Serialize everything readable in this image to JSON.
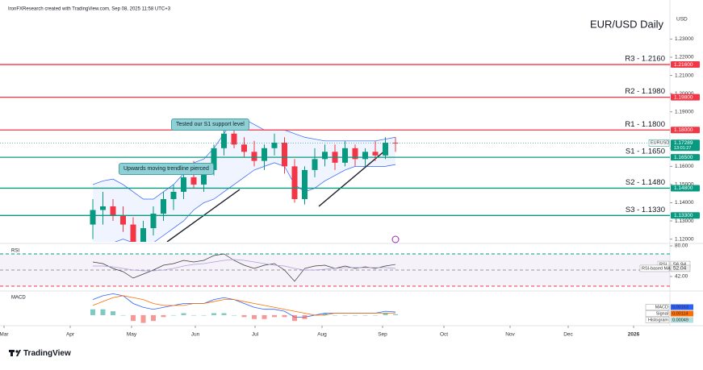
{
  "header": {
    "credit": "IronFXResearch created with TradingView.com, Sep 08, 2025 11:58 UTC+3",
    "currency": "USD"
  },
  "chart_data": [
    {
      "type": "candlestick",
      "title": "EUR/USD Daily",
      "xlim": [
        -9.2,
        57.2
      ],
      "ylim": [
        1.1185,
        1.2435
      ],
      "yticks": [
        {
          "value": 1.23,
          "label": "1.23000"
        },
        {
          "value": 1.22,
          "label": "1.22000"
        },
        {
          "value": 1.21,
          "label": "1.21000"
        },
        {
          "value": 1.2,
          "label": "1.20000"
        },
        {
          "value": 1.19,
          "label": "1.19000"
        },
        {
          "value": 1.17,
          "label": "1.17000"
        },
        {
          "value": 1.16,
          "label": "1.16000"
        },
        {
          "value": 1.15,
          "label": "1.15000"
        },
        {
          "value": 1.14,
          "label": "1.14000"
        },
        {
          "value": 1.13,
          "label": "1.13000"
        },
        {
          "value": 1.12,
          "label": "1.12000"
        }
      ],
      "series": [
        {
          "name": "EURUSD",
          "up_color": "#089981",
          "down_color": "#f23645",
          "open": [
            1.128,
            1.136,
            1.138,
            1.133,
            1.128,
            1.118,
            1.126,
            1.134,
            1.142,
            1.146,
            1.154,
            1.15,
            1.158,
            1.17,
            1.178,
            1.172,
            1.168,
            1.163,
            1.17,
            1.173,
            1.16,
            1.142,
            1.158,
            1.164,
            1.168,
            1.162,
            1.17,
            1.164,
            1.168,
            1.166,
            1.173
          ],
          "high": [
            1.142,
            1.146,
            1.142,
            1.138,
            1.132,
            1.13,
            1.138,
            1.146,
            1.15,
            1.158,
            1.163,
            1.16,
            1.172,
            1.18,
            1.183,
            1.176,
            1.174,
            1.172,
            1.178,
            1.176,
            1.164,
            1.16,
            1.17,
            1.172,
            1.172,
            1.174,
            1.172,
            1.17,
            1.174,
            1.176,
            1.176
          ],
          "low": [
            1.12,
            1.128,
            1.13,
            1.124,
            1.112,
            1.114,
            1.122,
            1.13,
            1.136,
            1.142,
            1.148,
            1.146,
            1.155,
            1.166,
            1.17,
            1.165,
            1.16,
            1.158,
            1.166,
            1.156,
            1.14,
            1.139,
            1.154,
            1.16,
            1.158,
            1.16,
            1.16,
            1.16,
            1.163,
            1.164,
            1.168
          ],
          "close": [
            1.136,
            1.138,
            1.133,
            1.128,
            1.118,
            1.126,
            1.134,
            1.142,
            1.146,
            1.154,
            1.15,
            1.158,
            1.17,
            1.178,
            1.172,
            1.168,
            1.163,
            1.17,
            1.173,
            1.16,
            1.142,
            1.158,
            1.164,
            1.168,
            1.162,
            1.17,
            1.164,
            1.168,
            1.166,
            1.173,
            1.17289
          ]
        }
      ],
      "countdown": "13:01:27",
      "bands": {
        "color": "#2962ff",
        "upper": [
          1.15,
          1.152,
          1.153,
          1.15,
          1.146,
          1.142,
          1.142,
          1.146,
          1.15,
          1.156,
          1.162,
          1.164,
          1.17,
          1.178,
          1.186,
          1.186,
          1.183,
          1.18,
          1.18,
          1.18,
          1.178,
          1.176,
          1.175,
          1.174,
          1.174,
          1.174,
          1.174,
          1.174,
          1.174,
          1.175,
          1.176
        ],
        "lower": [
          1.11,
          1.112,
          1.118,
          1.12,
          1.118,
          1.116,
          1.118,
          1.122,
          1.126,
          1.13,
          1.136,
          1.14,
          1.142,
          1.146,
          1.15,
          1.154,
          1.158,
          1.16,
          1.162,
          1.16,
          1.15,
          1.146,
          1.148,
          1.152,
          1.155,
          1.158,
          1.16,
          1.16,
          1.16,
          1.16,
          1.161
        ]
      },
      "levels": [
        {
          "name": "R3 - 1.2160",
          "value": 1.216,
          "label": "1.21600",
          "color": "#f23645"
        },
        {
          "name": "R2 - 1.1980",
          "value": 1.198,
          "label": "1.19800",
          "color": "#f23645"
        },
        {
          "name": "R1 - 1.1800",
          "value": 1.18,
          "label": "1.18000",
          "color": "#f23645"
        },
        {
          "name": "S1 - 1.1650",
          "value": 1.165,
          "label": "1.16500",
          "color": "#089981"
        },
        {
          "name": "S2 - 1.1480",
          "value": 1.148,
          "label": "1.14800",
          "color": "#089981"
        },
        {
          "name": "S3 - 1.1330",
          "value": 1.133,
          "label": "1.13300",
          "color": "#089981"
        }
      ],
      "trendlines": [
        {
          "x": [
            7.36,
            14.56
          ],
          "y": [
            1.1185,
            1.1473
          ]
        },
        {
          "x": [
            22.4,
            29.04
          ],
          "y": [
            1.138,
            1.169
          ]
        }
      ],
      "annotations": [
        "Tested our S1 support level",
        "Upwards moving trendline  pierced"
      ]
    },
    {
      "type": "line",
      "title": "RSI",
      "xlim": [
        -9.2,
        57.2
      ],
      "ylim": [
        25,
        82
      ],
      "yticks": [
        {
          "value": 80,
          "label": "80.00"
        },
        {
          "value": 42,
          "label": "42.00"
        }
      ],
      "levels": [
        70,
        50,
        30
      ],
      "series": [
        {
          "name": "RSI",
          "color": "#3a3a3a",
          "values": [
            60,
            58,
            52,
            48,
            40,
            45,
            50,
            56,
            58,
            62,
            60,
            62,
            68,
            70,
            62,
            56,
            52,
            56,
            58,
            50,
            36,
            52,
            55,
            56,
            52,
            55,
            52,
            54,
            52,
            55,
            56.94
          ]
        },
        {
          "name": "RSI-based MA",
          "color": "#b39ddb",
          "values": [
            55,
            55,
            54,
            52,
            50,
            49,
            49,
            50,
            52,
            55,
            57,
            58,
            60,
            62,
            63,
            62,
            60,
            58,
            56,
            55,
            52,
            50,
            50,
            51,
            52,
            53,
            53,
            53,
            53,
            53,
            52.04
          ]
        }
      ]
    },
    {
      "type": "macd",
      "title": "MACD",
      "xlim": [
        -9.2,
        57.2
      ],
      "ylim": [
        -0.005,
        0.012
      ],
      "xticks": [
        {
          "value": -8.8,
          "label": "Mar"
        },
        {
          "value": -2.24,
          "label": "Apr"
        },
        {
          "value": 3.84,
          "label": "May"
        },
        {
          "value": 10.16,
          "label": "Jun"
        },
        {
          "value": 16.08,
          "label": "Jul"
        },
        {
          "value": 22.72,
          "label": "Aug"
        },
        {
          "value": 28.72,
          "label": "Sep"
        },
        {
          "value": 34.8,
          "label": "Oct"
        },
        {
          "value": 41.36,
          "label": "Nov"
        },
        {
          "value": 47.12,
          "label": "Dec"
        },
        {
          "value": 53.6,
          "label": "2026"
        }
      ],
      "series": [
        {
          "name": "MACD",
          "color": "#2962ff",
          "values": [
            0.008,
            0.01,
            0.011,
            0.01,
            0.006,
            0.004,
            0.003,
            0.004,
            0.005,
            0.006,
            0.006,
            0.006,
            0.008,
            0.009,
            0.008,
            0.006,
            0.004,
            0.003,
            0.003,
            0.002,
            -0.001,
            -0.001,
            0.0,
            0.001,
            0.001,
            0.001,
            0.001,
            0.001,
            0.001,
            0.002,
            0.00163
          ]
        },
        {
          "name": "Signal",
          "color": "#ff6d00",
          "values": [
            0.005,
            0.007,
            0.009,
            0.01,
            0.009,
            0.008,
            0.006,
            0.005,
            0.005,
            0.005,
            0.006,
            0.006,
            0.007,
            0.008,
            0.008,
            0.007,
            0.006,
            0.005,
            0.004,
            0.003,
            0.002,
            0.001,
            0.0,
            0.0,
            0.001,
            0.001,
            0.001,
            0.001,
            0.001,
            0.001,
            0.00114
          ]
        },
        {
          "name": "Histogram",
          "color": "#26a69a",
          "down_color": "#ef5350",
          "values": [
            0.003,
            0.003,
            0.002,
            0,
            -0.003,
            -0.004,
            -0.003,
            -0.001,
            0,
            0.001,
            0,
            0,
            0.001,
            0.001,
            0,
            -0.001,
            -0.002,
            -0.002,
            -0.001,
            -0.001,
            -0.003,
            -0.002,
            0,
            0.001,
            0,
            0,
            0,
            0,
            0,
            0.001,
            0.00049
          ]
        }
      ]
    }
  ],
  "footer": {
    "brand": "TradingView"
  }
}
